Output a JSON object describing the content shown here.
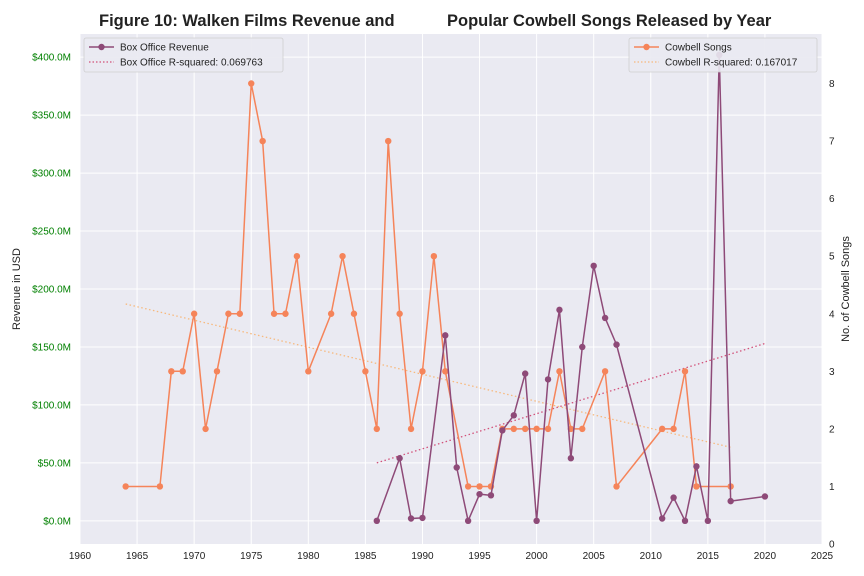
{
  "chart_data": {
    "type": "line",
    "title_left": "Figure 10: Walken Films Revenue and",
    "title_right": "Popular Cowbell Songs Released by Year",
    "xlabel": "",
    "ylabel_left": "Revenue in USD",
    "ylabel_right": "No. of Cowbell Songs",
    "xlim": [
      1960,
      2025
    ],
    "ylim_left": [
      -20000000,
      420000000
    ],
    "ylim_right": [
      0,
      8.86
    ],
    "x_ticks": [
      "1960",
      "1965",
      "1970",
      "1975",
      "1980",
      "1985",
      "1990",
      "1995",
      "2000",
      "2005",
      "2010",
      "2015",
      "2020",
      "2025"
    ],
    "y_left_ticks": [
      "$0.0M",
      "$50.0M",
      "$100.0M",
      "$150.0M",
      "$200.0M",
      "$250.0M",
      "$300.0M",
      "$350.0M",
      "$400.0M"
    ],
    "y_right_ticks": [
      "0",
      "1",
      "2",
      "3",
      "4",
      "5",
      "6",
      "7",
      "8"
    ],
    "grid": true,
    "legend_left_position": "top-left",
    "legend_right_position": "top-right",
    "colors": {
      "box_office": "#8e4a78",
      "box_office_trend": "#d2517a",
      "cowbell": "#f5845a",
      "cowbell_trend": "#f7b97e",
      "left_tick_labels": "#008000",
      "plot_background": "#eaeaf2",
      "grid": "#ffffff"
    },
    "series": [
      {
        "name": "Box Office Revenue",
        "axis": "left",
        "x": [
          1986,
          1988,
          1989,
          1990,
          1992,
          1993,
          1994,
          1995,
          1996,
          1997,
          1998,
          1999,
          2000,
          2001,
          2002,
          2003,
          2004,
          2005,
          2006,
          2007,
          2011,
          2012,
          2013,
          2014,
          2015,
          2016,
          2017,
          2020
        ],
        "values": [
          0,
          54000000,
          2000000,
          2500000,
          160000000,
          46000000,
          0,
          23000000,
          22000000,
          78000000,
          91000000,
          127000000,
          0,
          122000000,
          182000000,
          54000000,
          150000000,
          220000000,
          175000000,
          152000000,
          2000000,
          20000000,
          0,
          47000000,
          0,
          402000000,
          17000000,
          21000000
        ]
      },
      {
        "name": "Cowbell Songs",
        "axis": "right",
        "x": [
          1964,
          1967,
          1968,
          1969,
          1970,
          1971,
          1972,
          1973,
          1974,
          1975,
          1976,
          1977,
          1978,
          1979,
          1980,
          1982,
          1983,
          1984,
          1985,
          1986,
          1987,
          1988,
          1989,
          1990,
          1991,
          1992,
          1994,
          1995,
          1996,
          1997,
          1998,
          1999,
          2000,
          2001,
          2002,
          2003,
          2004,
          2006,
          2007,
          2011,
          2012,
          2013,
          2014,
          2017
        ],
        "values": [
          1,
          1,
          3,
          3,
          4,
          2,
          3,
          4,
          4,
          8,
          7,
          4,
          4,
          5,
          3,
          4,
          5,
          4,
          3,
          2,
          7,
          4,
          2,
          3,
          5,
          3,
          1,
          1,
          1,
          2,
          2,
          2,
          2,
          2,
          3,
          2,
          2,
          3,
          1,
          2,
          2,
          3,
          1,
          1
        ]
      }
    ],
    "trendlines": [
      {
        "name": "Box Office R-squared: 0.069763",
        "axis": "left",
        "x": [
          1986,
          2020
        ],
        "values": [
          50000000,
          153000000
        ]
      },
      {
        "name": "Cowbell R-squared: 0.167017",
        "axis": "right",
        "x": [
          1964,
          2017
        ],
        "values": [
          4.17,
          1.68
        ]
      }
    ]
  }
}
